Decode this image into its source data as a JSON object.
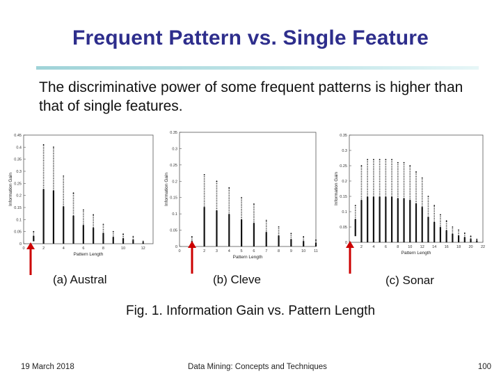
{
  "slide": {
    "title": "Frequent Pattern vs. Single Feature",
    "body": "The discriminative power of some frequent patterns is higher than that of single features.",
    "figure_caption": "Fig. 1.  Information Gain vs. Pattern Length",
    "footer": {
      "date": "19 March 2018",
      "course": "Data Mining: Concepts and Techniques",
      "page": "100"
    },
    "colors": {
      "title": "#2e2e8c",
      "rule": "#9fd3d8",
      "arrow": "#cc0000"
    }
  },
  "chart_data": [
    {
      "type": "scatter",
      "caption": "(a) Austral",
      "xlabel": "Pattern Length",
      "ylabel": "Information Gain",
      "xlim": [
        0,
        13
      ],
      "ylim": [
        0,
        0.45
      ],
      "xticks": [
        0,
        2,
        4,
        6,
        8,
        10,
        12
      ],
      "yticks": [
        0,
        0.05,
        0.1,
        0.15,
        0.2,
        0.25,
        0.3,
        0.35,
        0.4,
        0.45
      ],
      "columns": [
        {
          "x": 1,
          "min": 0.01,
          "max": 0.05
        },
        {
          "x": 2,
          "min": 0.0,
          "max": 0.41
        },
        {
          "x": 3,
          "min": 0.0,
          "max": 0.4
        },
        {
          "x": 4,
          "min": 0.0,
          "max": 0.28
        },
        {
          "x": 5,
          "min": 0.0,
          "max": 0.21
        },
        {
          "x": 6,
          "min": 0.0,
          "max": 0.14
        },
        {
          "x": 7,
          "min": 0.0,
          "max": 0.12
        },
        {
          "x": 8,
          "min": 0.0,
          "max": 0.08
        },
        {
          "x": 9,
          "min": 0.0,
          "max": 0.05
        },
        {
          "x": 10,
          "min": 0.0,
          "max": 0.04
        },
        {
          "x": 11,
          "min": 0.0,
          "max": 0.03
        },
        {
          "x": 12,
          "min": 0.0,
          "max": 0.01
        }
      ],
      "arrow_at_x": 1
    },
    {
      "type": "scatter",
      "caption": "(b) Cleve",
      "xlabel": "Pattern Length",
      "ylabel": "Information Gain",
      "xlim": [
        0,
        11
      ],
      "ylim": [
        0,
        0.35
      ],
      "xticks": [
        0,
        1,
        2,
        3,
        4,
        5,
        6,
        7,
        8,
        9,
        10,
        11
      ],
      "yticks": [
        0,
        0.05,
        0.1,
        0.15,
        0.2,
        0.25,
        0.3,
        0.35
      ],
      "columns": [
        {
          "x": 1,
          "min": 0.0,
          "max": 0.03
        },
        {
          "x": 2,
          "min": 0.0,
          "max": 0.22
        },
        {
          "x": 3,
          "min": 0.0,
          "max": 0.2
        },
        {
          "x": 4,
          "min": 0.0,
          "max": 0.18
        },
        {
          "x": 5,
          "min": 0.0,
          "max": 0.15
        },
        {
          "x": 6,
          "min": 0.0,
          "max": 0.13
        },
        {
          "x": 7,
          "min": 0.0,
          "max": 0.08
        },
        {
          "x": 8,
          "min": 0.0,
          "max": 0.06
        },
        {
          "x": 9,
          "min": 0.0,
          "max": 0.04
        },
        {
          "x": 10,
          "min": 0.0,
          "max": 0.03
        },
        {
          "x": 11,
          "min": 0.0,
          "max": 0.02
        }
      ],
      "arrow_at_x": 1
    },
    {
      "type": "scatter",
      "caption": "(c) Sonar",
      "xlabel": "Pattern Length",
      "ylabel": "Information Gain",
      "xlim": [
        0,
        22
      ],
      "ylim": [
        0,
        0.35
      ],
      "xticks": [
        0,
        2,
        4,
        6,
        8,
        10,
        12,
        14,
        16,
        18,
        20,
        22
      ],
      "yticks": [
        0,
        0.05,
        0.1,
        0.15,
        0.2,
        0.25,
        0.3,
        0.35
      ],
      "columns": [
        {
          "x": 1,
          "min": 0.02,
          "max": 0.12
        },
        {
          "x": 2,
          "min": 0.0,
          "max": 0.25
        },
        {
          "x": 3,
          "min": 0.0,
          "max": 0.27
        },
        {
          "x": 4,
          "min": 0.0,
          "max": 0.27
        },
        {
          "x": 5,
          "min": 0.0,
          "max": 0.27
        },
        {
          "x": 6,
          "min": 0.0,
          "max": 0.27
        },
        {
          "x": 7,
          "min": 0.0,
          "max": 0.27
        },
        {
          "x": 8,
          "min": 0.0,
          "max": 0.26
        },
        {
          "x": 9,
          "min": 0.0,
          "max": 0.26
        },
        {
          "x": 10,
          "min": 0.0,
          "max": 0.25
        },
        {
          "x": 11,
          "min": 0.0,
          "max": 0.23
        },
        {
          "x": 12,
          "min": 0.0,
          "max": 0.21
        },
        {
          "x": 13,
          "min": 0.0,
          "max": 0.15
        },
        {
          "x": 14,
          "min": 0.0,
          "max": 0.12
        },
        {
          "x": 15,
          "min": 0.0,
          "max": 0.09
        },
        {
          "x": 16,
          "min": 0.0,
          "max": 0.07
        },
        {
          "x": 17,
          "min": 0.0,
          "max": 0.05
        },
        {
          "x": 18,
          "min": 0.0,
          "max": 0.04
        },
        {
          "x": 19,
          "min": 0.0,
          "max": 0.03
        },
        {
          "x": 20,
          "min": 0.0,
          "max": 0.02
        },
        {
          "x": 21,
          "min": 0.0,
          "max": 0.01
        }
      ],
      "arrow_at_x": 1
    }
  ]
}
